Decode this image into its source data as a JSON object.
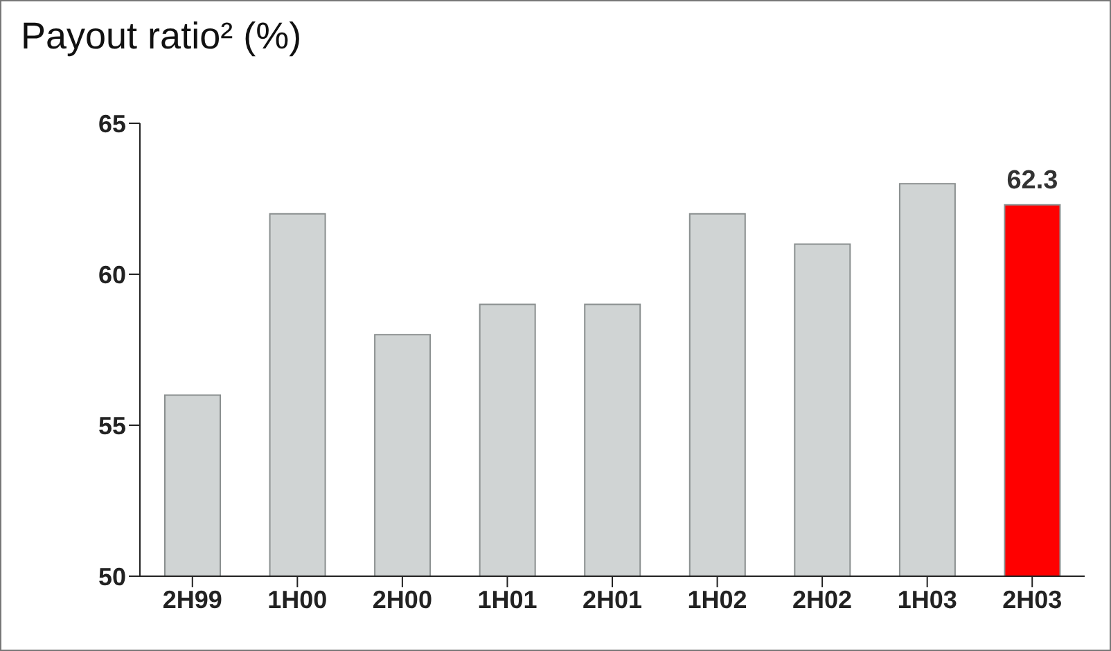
{
  "chart_data": {
    "type": "bar",
    "title": "Payout ratio² (%)",
    "categories": [
      "2H99",
      "1H00",
      "2H00",
      "1H01",
      "2H01",
      "1H02",
      "2H02",
      "1H03",
      "2H03"
    ],
    "values": [
      56,
      62,
      58,
      59,
      59,
      62,
      61,
      63,
      62.3
    ],
    "colors": [
      "#d0d4d4",
      "#d0d4d4",
      "#d0d4d4",
      "#d0d4d4",
      "#d0d4d4",
      "#d0d4d4",
      "#d0d4d4",
      "#d0d4d4",
      "#ff0000"
    ],
    "value_labels": [
      null,
      null,
      null,
      null,
      null,
      null,
      null,
      null,
      "62.3"
    ],
    "ylim": [
      50,
      65
    ],
    "yticks": [
      50,
      55,
      60,
      65
    ],
    "grid": false,
    "legend": false
  }
}
